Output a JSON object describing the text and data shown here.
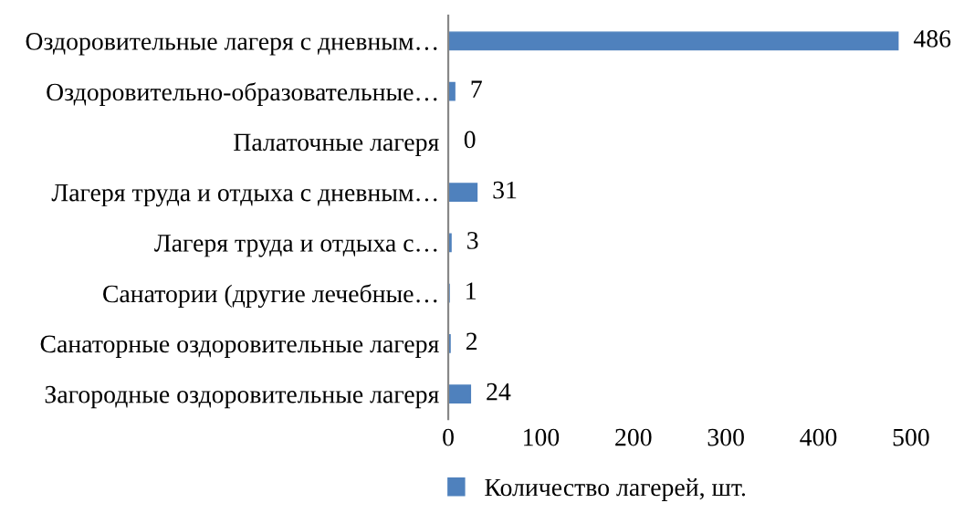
{
  "chart_data": {
    "type": "bar",
    "orientation": "horizontal",
    "categories": [
      "Оздоровительные лагеря с дневным…",
      "Оздоровительно-образовательные…",
      "Палаточные лагеря",
      "Лагеря труда и отдыха с дневным…",
      "Лагеря труда и отдыха с…",
      "Санатории (другие лечебные…",
      "Санаторные оздоровительные лагеря",
      "Загородные оздоровительные лагеря"
    ],
    "series": [
      {
        "name": "Количество лагерей, шт.",
        "color": "#4f81bd",
        "values": [
          486,
          7,
          0,
          31,
          3,
          1,
          2,
          24
        ]
      }
    ],
    "xlim": [
      0,
      500
    ],
    "xticks": [
      0,
      100,
      200,
      300,
      400,
      500
    ],
    "data_labels": true,
    "grid": false,
    "legend": "bottom"
  }
}
